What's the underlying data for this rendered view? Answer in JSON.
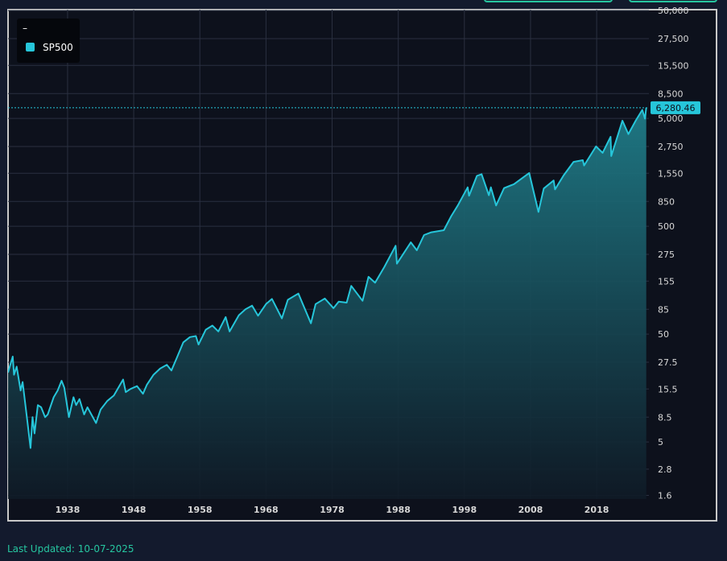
{
  "chart_data": {
    "type": "line",
    "legend_title": "–",
    "footer": "Last Updated: 10-07-2025",
    "log_scale": true,
    "grid": true,
    "legend": "top-left",
    "xlim": [
      1929,
      2025.9
    ],
    "xticks": [
      1938,
      1948,
      1958,
      1968,
      1978,
      1988,
      1998,
      2008,
      2018
    ],
    "ylim": [
      1.48,
      51000
    ],
    "yticks": [
      1.6,
      2.8,
      5,
      8.5,
      15.5,
      27.5,
      50,
      85,
      155,
      275,
      500,
      850,
      {
        "value": 1550,
        "label": "1,550"
      },
      {
        "value": 2750,
        "label": "2,750"
      },
      {
        "value": 5000,
        "label": "5,000"
      },
      {
        "value": 8500,
        "label": "8,500"
      },
      {
        "value": 15500,
        "label": "15,500"
      },
      {
        "value": 27500,
        "label": "27,500"
      },
      {
        "value": 50000,
        "label": "50,000"
      }
    ],
    "x": [
      1929.0,
      1929.7,
      1929.9,
      1930.3,
      1930.9,
      1931.2,
      1931.9,
      1932.4,
      1932.7,
      1933.0,
      1933.5,
      1934.0,
      1934.6,
      1935.0,
      1935.9,
      1936.5,
      1937.1,
      1937.5,
      1938.2,
      1938.9,
      1939.3,
      1939.8,
      1940.5,
      1941.0,
      1942.3,
      1943.0,
      1944.0,
      1945.0,
      1946.4,
      1946.8,
      1947.5,
      1948.5,
      1949.4,
      1950.0,
      1951.0,
      1952.0,
      1953.0,
      1953.7,
      1954.5,
      1955.5,
      1956.5,
      1957.4,
      1957.8,
      1958.9,
      1959.9,
      1960.8,
      1961.9,
      1962.5,
      1963.9,
      1964.9,
      1965.9,
      1966.8,
      1968.0,
      1968.9,
      1970.4,
      1971.3,
      1972.9,
      1974.8,
      1975.5,
      1976.9,
      1978.2,
      1979.0,
      1980.2,
      1980.9,
      1982.6,
      1983.5,
      1984.5,
      1985.9,
      1987.6,
      1987.8,
      1989.9,
      1990.8,
      1991.9,
      1993.0,
      1994.9,
      1996.0,
      1997.0,
      1998.5,
      1998.7,
      1999.9,
      2000.6,
      2001.7,
      2002.0,
      2002.8,
      2004.0,
      2005.5,
      2007.8,
      2009.2,
      2010.0,
      2011.5,
      2011.7,
      2013.0,
      2014.5,
      2015.9,
      2016.1,
      2017.9,
      2018.9,
      2020.1,
      2020.2,
      2021.9,
      2022.8,
      2023.9,
      2024.9,
      2025.3,
      2025.5
    ],
    "series": [
      {
        "name": "SP500",
        "color": "#26c6da",
        "values": [
          22,
          31,
          21,
          25,
          15,
          18,
          8,
          4.4,
          8.5,
          6,
          11,
          10.5,
          8.5,
          9,
          13,
          15,
          18.5,
          16,
          8.5,
          13,
          11,
          12.5,
          9,
          10.5,
          7.5,
          10,
          12,
          13.5,
          19,
          14.5,
          15.5,
          16.5,
          14,
          17,
          21,
          24,
          26,
          23,
          30,
          42,
          47,
          48,
          40,
          55,
          60,
          53,
          72,
          53,
          75,
          85,
          92,
          74,
          95,
          106,
          70,
          104,
          119,
          63,
          95,
          107,
          87,
          100,
          98,
          140,
          102,
          170,
          150,
          210,
          330,
          225,
          355,
          300,
          415,
          440,
          460,
          620,
          780,
          1150,
          960,
          1470,
          1520,
          970,
          1150,
          780,
          1130,
          1230,
          1560,
          680,
          1120,
          1330,
          1100,
          1480,
          1980,
          2050,
          1830,
          2750,
          2400,
          3380,
          2240,
          4770,
          3580,
          4770,
          6000,
          4980,
          6280.46
        ],
        "value_labels": [
          null,
          null,
          null,
          null,
          null,
          null,
          null,
          null,
          null,
          null,
          null,
          null,
          null,
          null,
          null,
          null,
          null,
          null,
          null,
          null,
          null,
          null,
          null,
          null,
          null,
          null,
          null,
          null,
          null,
          null,
          null,
          null,
          null,
          null,
          null,
          null,
          null,
          null,
          null,
          null,
          null,
          null,
          null,
          null,
          null,
          null,
          null,
          null,
          null,
          null,
          null,
          null,
          null,
          null,
          null,
          null,
          null,
          null,
          null,
          null,
          null,
          null,
          null,
          null,
          null,
          null,
          null,
          null,
          null,
          null,
          null,
          null,
          null,
          null,
          null,
          null,
          null,
          null,
          null,
          null,
          null,
          null,
          null,
          null,
          null,
          null,
          null,
          null,
          null,
          null,
          null,
          null,
          null,
          null,
          null,
          null,
          null,
          null,
          null,
          null,
          null,
          null,
          null,
          null,
          "6,280.46"
        ]
      }
    ]
  }
}
